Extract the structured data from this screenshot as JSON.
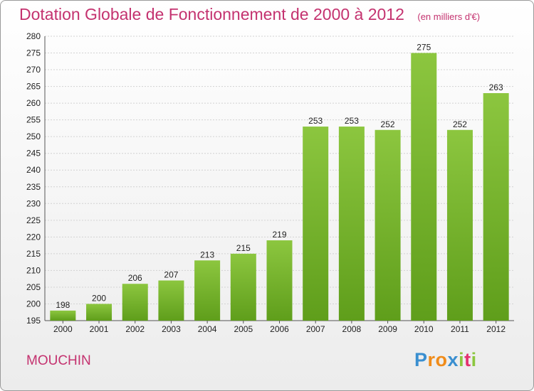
{
  "chart_data": {
    "type": "bar",
    "title": "Dotation Globale de Fonctionnement de 2000 à 2012",
    "subtitle": "(en milliers d'€)",
    "categories": [
      "2000",
      "2001",
      "2002",
      "2003",
      "2004",
      "2005",
      "2006",
      "2007",
      "2008",
      "2009",
      "2010",
      "2011",
      "2012"
    ],
    "values": [
      198,
      200,
      206,
      207,
      213,
      215,
      219,
      253,
      253,
      252,
      275,
      252,
      263
    ],
    "ylim": [
      195,
      280
    ],
    "yticks": [
      195,
      200,
      205,
      210,
      215,
      220,
      225,
      230,
      235,
      240,
      245,
      250,
      255,
      260,
      265,
      270,
      275,
      280
    ],
    "xlabel": "",
    "ylabel": "",
    "grid": true,
    "bar_color": "#8cc63f",
    "bar_color_dark": "#5f9e1b",
    "text_color": "#c4326f"
  },
  "commune": "MOUCHIN",
  "logo": {
    "letters": [
      {
        "ch": "P",
        "color": "#3a8fd0"
      },
      {
        "ch": "r",
        "color": "#f08c1a"
      },
      {
        "ch": "o",
        "color": "#f08c1a"
      },
      {
        "ch": "x",
        "color": "#3a8fd0"
      },
      {
        "ch": "i",
        "color": "#8cc63f"
      },
      {
        "ch": "t",
        "color": "#e4306f"
      },
      {
        "ch": "i",
        "color": "#8cc63f"
      }
    ]
  }
}
